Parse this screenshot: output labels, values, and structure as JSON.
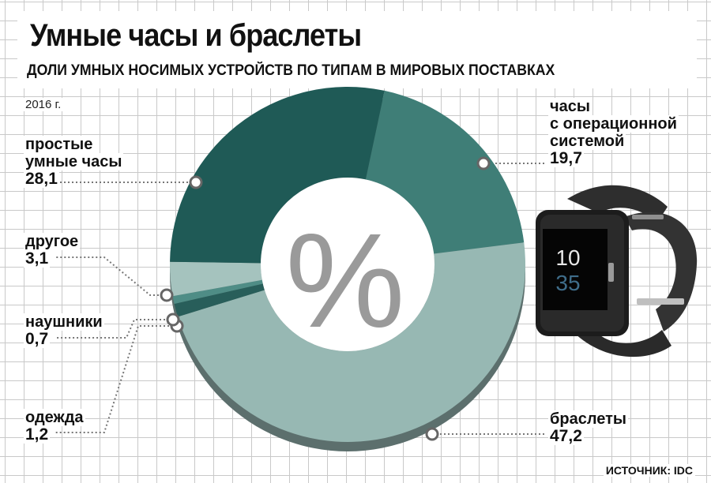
{
  "header": {
    "title": "Умные часы и браслеты",
    "subtitle": "ДОЛИ УМНЫХ НОСИМЫХ УСТРОЙСТВ ПО ТИПАМ В МИРОВЫХ ПОСТАВКАХ"
  },
  "year_note": "2016 г.",
  "source": "ИСТОЧНИК: IDC",
  "center_symbol": "%",
  "watch_display": {
    "hour": "10",
    "minute": "35"
  },
  "labels": {
    "os_watch": {
      "line1": "часы",
      "line2": "с операционной",
      "line3": "системой",
      "value": "19,7"
    },
    "simple": {
      "line1": "простые",
      "line2": "умные часы",
      "value": "28,1"
    },
    "other": {
      "line1": "другое",
      "value": "3,1"
    },
    "headphones": {
      "line1": "наушники",
      "value": "0,7"
    },
    "clothing": {
      "line1": "одежда",
      "value": "1,2"
    },
    "bracelets": {
      "line1": "браслеты",
      "value": "47,2"
    }
  },
  "chart_data": {
    "type": "pie",
    "donut": true,
    "title": "Умные часы и браслеты",
    "subtitle": "ДОЛИ УМНЫХ НОСИМЫХ УСТРОЙСТВ ПО ТИПАМ В МИРОВЫХ ПОСТАВКАХ",
    "year": "2016 г.",
    "unit": "%",
    "slices": [
      {
        "label": "часы с операционной системой",
        "value": 19.7,
        "color": "#3f7e77"
      },
      {
        "label": "браслеты",
        "value": 47.2,
        "color": "#97b8b3"
      },
      {
        "label": "одежда",
        "value": 1.2,
        "color": "#285e5a"
      },
      {
        "label": "наушники",
        "value": 0.7,
        "color": "#4f8d86"
      },
      {
        "label": "другое",
        "value": 3.1,
        "color": "#a5c3be"
      },
      {
        "label": "простые умные часы",
        "value": 28.1,
        "color": "#1f5a56"
      }
    ],
    "legend": "none",
    "source": "ИСТОЧНИК: IDC"
  }
}
